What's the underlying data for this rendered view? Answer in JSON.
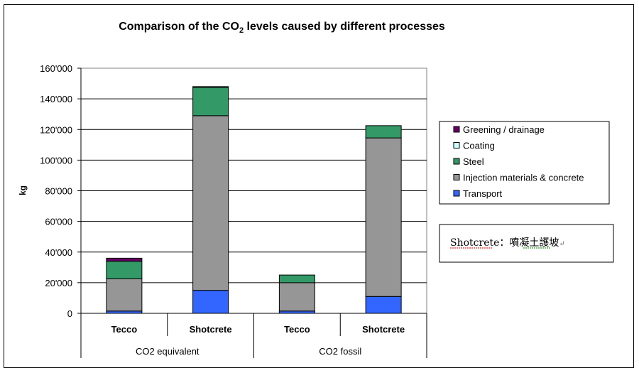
{
  "chart_data": {
    "type": "bar",
    "stacked": true,
    "title_prefix": "Comparison of the CO",
    "title_sub": "2",
    "title_suffix": " levels caused by different processes",
    "ylabel": "kg",
    "ylim": [
      0,
      160000
    ],
    "yticks": [
      0,
      20000,
      40000,
      60000,
      80000,
      100000,
      120000,
      140000,
      160000
    ],
    "ytick_labels": [
      "0",
      "20'000",
      "40'000",
      "60'000",
      "80'000",
      "100'000",
      "120'000",
      "140'000",
      "160'000"
    ],
    "grid": true,
    "categories": [
      "Tecco",
      "Shotcrete",
      "Tecco",
      "Shotcrete"
    ],
    "groups": [
      {
        "label": "CO2 equivalent",
        "span": 2
      },
      {
        "label": "CO2 fossil",
        "span": 2
      }
    ],
    "series": [
      {
        "name": "Transport",
        "color": "#3366ff",
        "values": [
          1500,
          15000,
          1500,
          11000
        ]
      },
      {
        "name": "Injection materials & concrete",
        "color": "#969696",
        "values": [
          21000,
          114000,
          18500,
          103500
        ]
      },
      {
        "name": "Steel",
        "color": "#339966",
        "values": [
          11500,
          18500,
          5000,
          8000
        ]
      },
      {
        "name": "Coating",
        "color": "#ccffff",
        "values": [
          0,
          0,
          0,
          0
        ]
      },
      {
        "name": "Greening / drainage",
        "color": "#660066",
        "values": [
          2000,
          500,
          0,
          0
        ]
      }
    ],
    "legend_position": "right",
    "legend_order": [
      "Greening / drainage",
      "Coating",
      "Steel",
      "Injection materials & concrete",
      "Transport"
    ]
  },
  "annotation": {
    "latin": "Shotcrete",
    "separator": "：",
    "cjk": "噴凝土護坡",
    "mark": "↵"
  }
}
